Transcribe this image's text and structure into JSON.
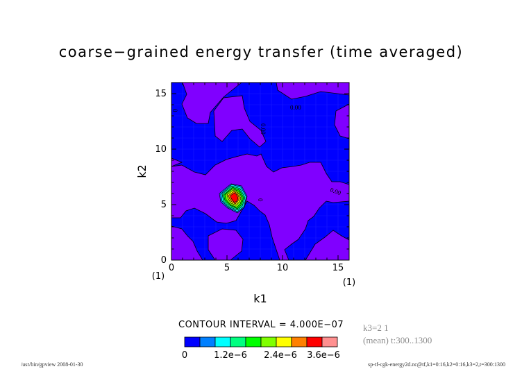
{
  "title": "coarse−grained energy transfer (time averaged)",
  "colors": {
    "levels": [
      "#0000ff",
      "#0080ff",
      "#00ffff",
      "#00ff80",
      "#00ff00",
      "#80ff00",
      "#ffff00",
      "#ff8000",
      "#ff0000",
      "#ff9090"
    ],
    "background_mask": "#8000ff",
    "grid": "#0000ff"
  },
  "chart_data": {
    "type": "heatmap",
    "title": "coarse−grained energy transfer (time averaged)",
    "xlabel": "k1",
    "ylabel": "k2",
    "xlim": [
      0,
      16
    ],
    "ylim": [
      0,
      16
    ],
    "x_ticks": [
      "0",
      "5",
      "10",
      "15"
    ],
    "y_ticks": [
      "0",
      "5",
      "10",
      "15"
    ],
    "x_index_labels": [
      "(1)",
      "(1)"
    ],
    "contour_interval": "CONTOUR INTERVAL = 4.000E−07",
    "contour_labels": [
      "0",
      "0.00",
      "0.00",
      "0",
      "0.00"
    ],
    "peak": {
      "k1": 6,
      "k2": 6
    },
    "colorbar": {
      "tick_labels": [
        "0",
        "1.2e−6",
        "2.4e−6",
        "3.6e−6"
      ],
      "level_step": 4e-07
    }
  },
  "meta": {
    "k3": "k3=2 1",
    "mean_time": "(mean) t:300..1300"
  },
  "footer": {
    "left": "/usr/bin/gpview  2008-01-30",
    "right": "sp-tf-cgk-energy2d.nc@tf,k1=0:16,k2=0:16,k3=2,t=300:1300"
  }
}
